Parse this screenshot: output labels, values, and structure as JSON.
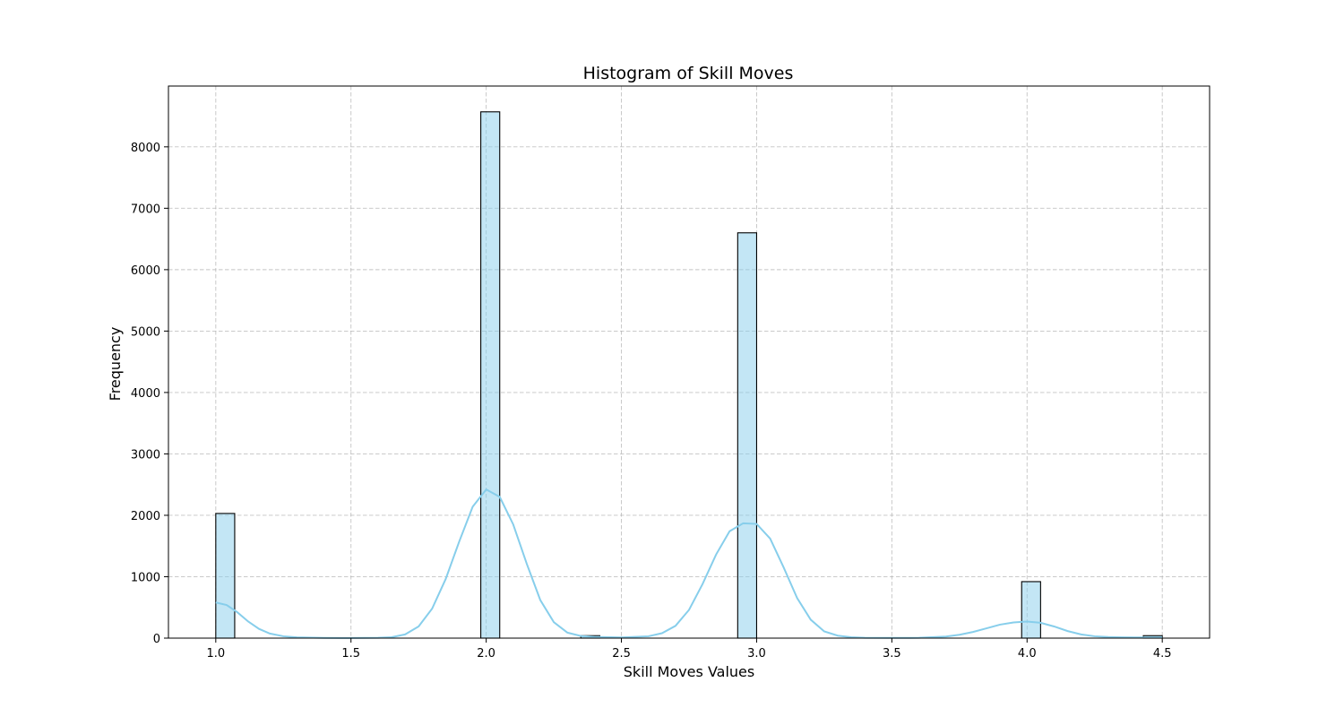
{
  "chart_data": {
    "type": "bar",
    "title": "Histogram of Skill Moves",
    "xlabel": "Skill Moves Values",
    "ylabel": "Frequency",
    "xlim": [
      0.825,
      4.675
    ],
    "ylim": [
      0,
      8990
    ],
    "xticks": [
      1.0,
      1.5,
      2.0,
      2.5,
      3.0,
      3.5,
      4.0,
      4.5
    ],
    "xtick_labels": [
      "1.0",
      "1.5",
      "2.0",
      "2.5",
      "3.0",
      "3.5",
      "4.0",
      "4.5"
    ],
    "yticks": [
      0,
      1000,
      2000,
      3000,
      4000,
      5000,
      6000,
      7000,
      8000
    ],
    "ytick_labels": [
      "0",
      "1000",
      "2000",
      "3000",
      "4000",
      "5000",
      "6000",
      "7000",
      "8000"
    ],
    "grid": true,
    "bar_color": "#87ceeb",
    "kde_color": "#87ceeb",
    "bins": [
      {
        "x0": 1.0,
        "x1": 1.07,
        "value": 2030
      },
      {
        "x0": 1.98,
        "x1": 2.05,
        "value": 8570
      },
      {
        "x0": 2.35,
        "x1": 2.42,
        "value": 40
      },
      {
        "x0": 2.93,
        "x1": 3.0,
        "value": 6600
      },
      {
        "x0": 3.98,
        "x1": 4.05,
        "value": 920
      },
      {
        "x0": 4.43,
        "x1": 4.5,
        "value": 40
      }
    ],
    "kde": {
      "x": [
        1.0,
        1.04,
        1.08,
        1.12,
        1.16,
        1.2,
        1.25,
        1.3,
        1.4,
        1.5,
        1.6,
        1.65,
        1.7,
        1.75,
        1.8,
        1.85,
        1.9,
        1.95,
        2.0,
        2.05,
        2.1,
        2.15,
        2.2,
        2.25,
        2.3,
        2.35,
        2.4,
        2.5,
        2.6,
        2.65,
        2.7,
        2.75,
        2.8,
        2.85,
        2.9,
        2.95,
        3.0,
        3.05,
        3.1,
        3.15,
        3.2,
        3.25,
        3.3,
        3.35,
        3.4,
        3.5,
        3.6,
        3.7,
        3.75,
        3.8,
        3.85,
        3.9,
        3.95,
        4.0,
        4.05,
        4.1,
        4.15,
        4.2,
        4.25,
        4.3,
        4.35,
        4.4,
        4.45,
        4.5
      ],
      "y": [
        580,
        540,
        420,
        270,
        150,
        75,
        30,
        12,
        4,
        2,
        5,
        15,
        60,
        190,
        480,
        960,
        1570,
        2140,
        2420,
        2300,
        1850,
        1210,
        620,
        260,
        90,
        35,
        20,
        10,
        30,
        80,
        200,
        460,
        880,
        1360,
        1740,
        1870,
        1860,
        1620,
        1150,
        650,
        300,
        110,
        40,
        15,
        6,
        3,
        5,
        25,
        55,
        100,
        160,
        220,
        255,
        270,
        250,
        190,
        115,
        60,
        30,
        18,
        12,
        10,
        10,
        10
      ]
    }
  }
}
